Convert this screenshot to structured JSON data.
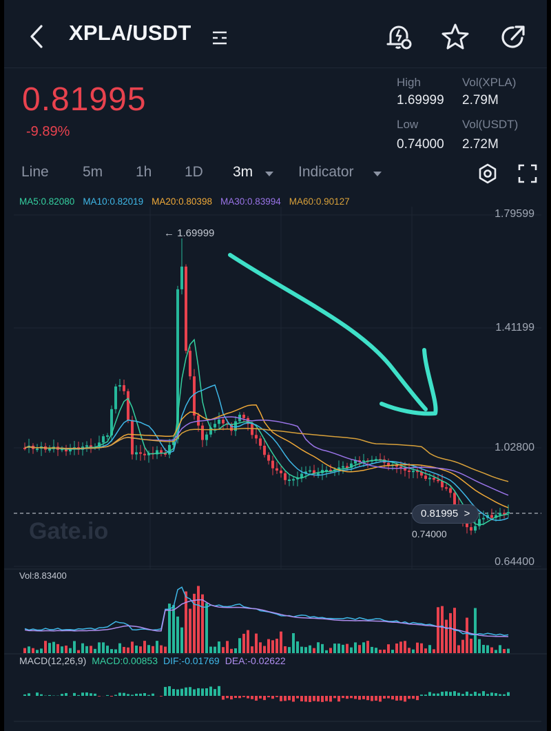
{
  "header": {
    "pair": "XPLA/USDT",
    "icons": [
      "back-arrow-icon",
      "pair-menu-icon",
      "price-alert-icon",
      "star-icon",
      "share-icon"
    ]
  },
  "ticker": {
    "last_price": "0.81995",
    "change": "-9.89%",
    "high_label": "High",
    "high": "1.69999",
    "low_label": "Low",
    "low": "0.74000",
    "vol_base_label": "Vol(XPLA)",
    "vol_base": "2.79M",
    "vol_quote_label": "Vol(USDT)",
    "vol_quote": "2.72M",
    "up_color": "#26b89b",
    "down_color": "#e8424e"
  },
  "tabs": {
    "items": [
      "Line",
      "5m",
      "1h",
      "1D",
      "3m",
      "Indicator"
    ],
    "active": "3m"
  },
  "ma": {
    "ma5": "MA5:0.82080",
    "ma10": "MA10:0.82019",
    "ma20": "MA20:0.80398",
    "ma30": "MA30:0.83994",
    "ma60": "MA60:0.90127",
    "colors": {
      "ma5": "#35d0a0",
      "ma10": "#3fb8e8",
      "ma20": "#f0a938",
      "ma30": "#9a74e8",
      "ma60": "#d9a13a"
    }
  },
  "price_axis": {
    "ticks": [
      "1.79599",
      "1.41199",
      "1.02800",
      "0.64400"
    ],
    "current_badge": "0.81995",
    "high_marker": "← 1.69999",
    "low_marker": "0.74000"
  },
  "watermark": "Gate.io",
  "volume": {
    "label": "Vol:8.83400"
  },
  "macd": {
    "label": "MACD(12,26,9)",
    "macd": "MACD:0.00853",
    "dif": "DIF:-0.01769",
    "dea": "DEA:-0.02622"
  },
  "annotation": {
    "arrow_color": "#3fe0c8"
  }
}
